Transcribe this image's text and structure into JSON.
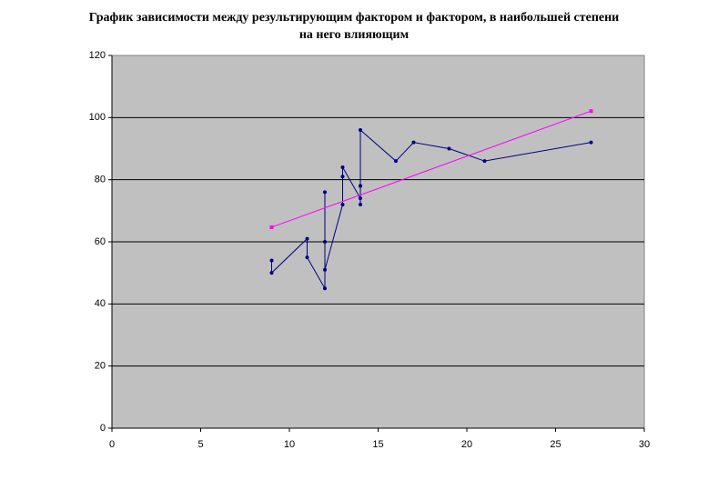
{
  "chart_data": {
    "type": "scatter-line",
    "title": "График зависимости между результирующим фактором и фактором, в наибольшей степени на него влияющим",
    "series": [
      {
        "color": "#000080",
        "marker": "circle",
        "x": [
          9,
          9,
          11,
          11,
          12,
          12,
          12,
          12,
          13,
          13,
          13,
          14,
          14,
          14,
          14,
          14,
          16,
          17,
          19,
          21,
          27
        ],
        "values": [
          54,
          50,
          61,
          55,
          45,
          76,
          60,
          51,
          72,
          81,
          84,
          74,
          72,
          78,
          78,
          96,
          86,
          92,
          90,
          86,
          92
        ]
      },
      {
        "color": "#ff00ff",
        "marker": "square",
        "x": [
          9,
          27
        ],
        "values": [
          64.7,
          102.1
        ]
      }
    ],
    "xlim": [
      0,
      30
    ],
    "xticks": [
      0,
      5,
      10,
      15,
      20,
      25,
      30
    ],
    "ylim": [
      0,
      120
    ],
    "yticks": [
      0,
      20,
      40,
      60,
      80,
      100,
      120
    ],
    "grid": true
  }
}
